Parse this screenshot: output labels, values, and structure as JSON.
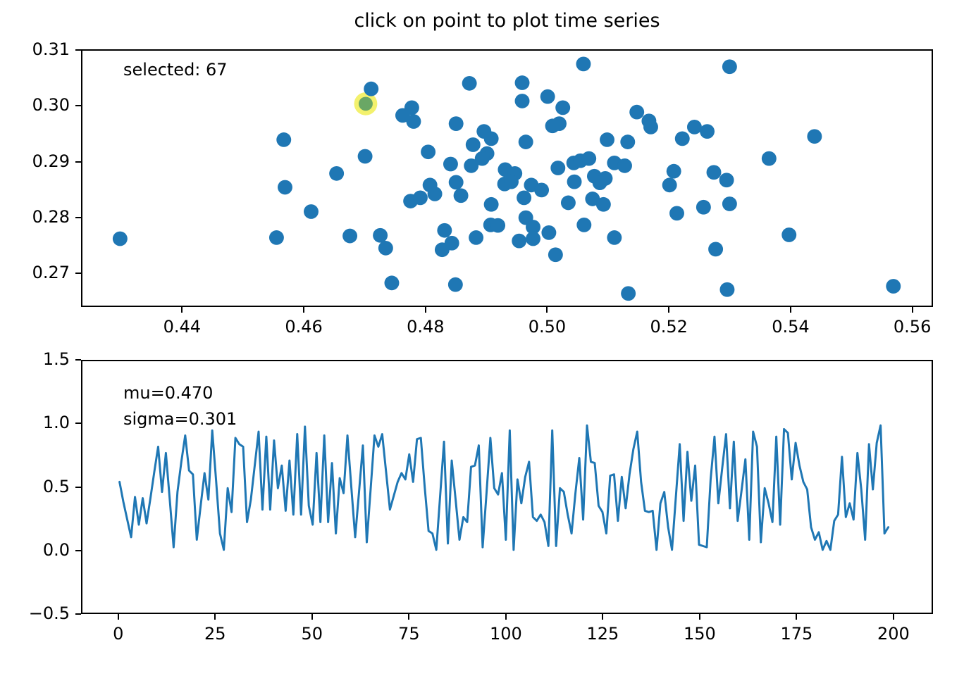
{
  "figure_title": "click on point to plot time series",
  "colors": {
    "marker": "#1f77b4",
    "line": "#1f77b4",
    "selected_fill": "#6aa765",
    "selected_halo": "#f1ee54",
    "axis": "#000000",
    "background": "#ffffff"
  },
  "chart_data": [
    {
      "type": "scatter",
      "title": "click on point to plot time series",
      "annotation": "selected: 67",
      "selected_index_label": "selected: 67",
      "xlim": [
        0.4234,
        0.5634
      ],
      "ylim": [
        0.264,
        0.3101
      ],
      "xticks": [
        0.44,
        0.46,
        0.48,
        0.5,
        0.52,
        0.54,
        0.56
      ],
      "xtick_labels": [
        "0.44",
        "0.46",
        "0.48",
        "0.50",
        "0.52",
        "0.54",
        "0.56"
      ],
      "yticks": [
        0.31,
        0.3,
        0.29,
        0.28,
        0.27
      ],
      "ytick_labels": [
        "0.31",
        "0.30",
        "0.29",
        "0.28",
        "0.27"
      ],
      "grid": false,
      "legend": null,
      "selected_point": {
        "index": 67,
        "x": 0.4701,
        "y": 0.3005
      },
      "points": [
        [
          0.4566,
          0.294
        ],
        [
          0.47,
          0.291
        ],
        [
          0.4653,
          0.2879
        ],
        [
          0.471,
          0.3032
        ],
        [
          0.4777,
          0.2998
        ],
        [
          0.4762,
          0.2984
        ],
        [
          0.478,
          0.2973
        ],
        [
          0.4872,
          0.3042
        ],
        [
          0.485,
          0.2969
        ],
        [
          0.4959,
          0.3043
        ],
        [
          0.4959,
          0.301
        ],
        [
          0.5001,
          0.3018
        ],
        [
          0.5026,
          0.2998
        ],
        [
          0.506,
          0.3077
        ],
        [
          0.5009,
          0.2965
        ],
        [
          0.502,
          0.2969
        ],
        [
          0.4896,
          0.2955
        ],
        [
          0.4908,
          0.2942
        ],
        [
          0.4878,
          0.2931
        ],
        [
          0.4804,
          0.2918
        ],
        [
          0.4901,
          0.2915
        ],
        [
          0.4965,
          0.2936
        ],
        [
          0.4841,
          0.2896
        ],
        [
          0.4875,
          0.2893
        ],
        [
          0.4893,
          0.2906
        ],
        [
          0.4931,
          0.2886
        ],
        [
          0.4947,
          0.2879
        ],
        [
          0.485,
          0.2863
        ],
        [
          0.5018,
          0.2889
        ],
        [
          0.5044,
          0.2898
        ],
        [
          0.5055,
          0.2902
        ],
        [
          0.5069,
          0.2906
        ],
        [
          0.5078,
          0.2874
        ],
        [
          0.5096,
          0.287
        ],
        [
          0.5148,
          0.299
        ],
        [
          0.5168,
          0.2974
        ],
        [
          0.5171,
          0.2963
        ],
        [
          0.5099,
          0.294
        ],
        [
          0.5133,
          0.2936
        ],
        [
          0.5111,
          0.2898
        ],
        [
          0.5128,
          0.2893
        ],
        [
          0.5301,
          0.3072
        ],
        [
          0.5243,
          0.2963
        ],
        [
          0.5264,
          0.2955
        ],
        [
          0.5223,
          0.2942
        ],
        [
          0.5441,
          0.2946
        ],
        [
          0.5366,
          0.2906
        ],
        [
          0.5209,
          0.2883
        ],
        [
          0.5275,
          0.2881
        ],
        [
          0.5296,
          0.2867
        ],
        [
          0.5202,
          0.2858
        ],
        [
          0.4296,
          0.2761
        ],
        [
          0.4568,
          0.2854
        ],
        [
          0.4611,
          0.281
        ],
        [
          0.4554,
          0.2763
        ],
        [
          0.4675,
          0.2766
        ],
        [
          0.4725,
          0.2767
        ],
        [
          0.4734,
          0.2744
        ],
        [
          0.4744,
          0.2681
        ],
        [
          0.4775,
          0.2829
        ],
        [
          0.4791,
          0.2835
        ],
        [
          0.4815,
          0.2842
        ],
        [
          0.4831,
          0.2776
        ],
        [
          0.4827,
          0.2741
        ],
        [
          0.4843,
          0.2753
        ],
        [
          0.4858,
          0.2839
        ],
        [
          0.4849,
          0.2678
        ],
        [
          0.4883,
          0.2763
        ],
        [
          0.4908,
          0.2823
        ],
        [
          0.4907,
          0.2786
        ],
        [
          0.4919,
          0.2785
        ],
        [
          0.493,
          0.286
        ],
        [
          0.4941,
          0.2864
        ],
        [
          0.4962,
          0.2835
        ],
        [
          0.4965,
          0.2799
        ],
        [
          0.4974,
          0.2858
        ],
        [
          0.4977,
          0.2782
        ],
        [
          0.4991,
          0.2849
        ],
        [
          0.4954,
          0.2757
        ],
        [
          0.4977,
          0.2761
        ],
        [
          0.5003,
          0.2772
        ],
        [
          0.5014,
          0.2732
        ],
        [
          0.5035,
          0.2826
        ],
        [
          0.5045,
          0.2864
        ],
        [
          0.5061,
          0.2786
        ],
        [
          0.5075,
          0.2833
        ],
        [
          0.5087,
          0.2862
        ],
        [
          0.5093,
          0.2823
        ],
        [
          0.5111,
          0.2763
        ],
        [
          0.5134,
          0.2662
        ],
        [
          0.5214,
          0.2807
        ],
        [
          0.5258,
          0.2818
        ],
        [
          0.5301,
          0.2824
        ],
        [
          0.5278,
          0.2742
        ],
        [
          0.5399,
          0.2768
        ],
        [
          0.5297,
          0.2669
        ],
        [
          0.5571,
          0.2675
        ],
        [
          0.4807,
          0.2858
        ]
      ]
    },
    {
      "type": "line",
      "annotation_mu": "mu=0.470",
      "annotation_sigma": "sigma=0.301",
      "xlim": [
        -9.6,
        210.2
      ],
      "ylim": [
        -0.5,
        1.5
      ],
      "xticks": [
        0,
        25,
        50,
        75,
        100,
        125,
        150,
        175,
        200
      ],
      "xtick_labels": [
        "0",
        "25",
        "50",
        "75",
        "100",
        "125",
        "150",
        "175",
        "200"
      ],
      "yticks": [
        1.5,
        1.0,
        0.5,
        0.0,
        -0.5
      ],
      "ytick_labels": [
        "1.5",
        "1.0",
        "0.5",
        "0.0",
        "−0.5"
      ],
      "grid": false,
      "legend": null,
      "x_start": 0,
      "x_step": 1,
      "values": [
        0.54,
        0.38,
        0.24,
        0.1,
        0.42,
        0.2,
        0.41,
        0.21,
        0.41,
        0.62,
        0.82,
        0.46,
        0.77,
        0.4,
        0.02,
        0.46,
        0.7,
        0.91,
        0.63,
        0.6,
        0.08,
        0.35,
        0.61,
        0.4,
        0.95,
        0.55,
        0.13,
        0.0,
        0.49,
        0.3,
        0.89,
        0.84,
        0.82,
        0.22,
        0.4,
        0.67,
        0.94,
        0.32,
        0.9,
        0.32,
        0.87,
        0.49,
        0.67,
        0.31,
        0.71,
        0.28,
        0.92,
        0.28,
        0.98,
        0.35,
        0.2,
        0.77,
        0.22,
        0.91,
        0.22,
        0.69,
        0.13,
        0.57,
        0.45,
        0.91,
        0.5,
        0.1,
        0.46,
        0.83,
        0.06,
        0.48,
        0.91,
        0.82,
        0.92,
        0.62,
        0.32,
        0.43,
        0.54,
        0.61,
        0.56,
        0.76,
        0.54,
        0.88,
        0.89,
        0.5,
        0.15,
        0.13,
        0.0,
        0.43,
        0.86,
        0.05,
        0.71,
        0.4,
        0.08,
        0.26,
        0.22,
        0.66,
        0.67,
        0.83,
        0.02,
        0.45,
        0.89,
        0.49,
        0.44,
        0.61,
        0.08,
        0.95,
        0.0,
        0.56,
        0.37,
        0.58,
        0.7,
        0.26,
        0.23,
        0.28,
        0.22,
        0.03,
        0.95,
        0.03,
        0.49,
        0.46,
        0.28,
        0.13,
        0.45,
        0.73,
        0.24,
        0.99,
        0.7,
        0.69,
        0.35,
        0.3,
        0.13,
        0.59,
        0.6,
        0.23,
        0.58,
        0.33,
        0.6,
        0.8,
        0.94,
        0.54,
        0.31,
        0.3,
        0.31,
        0.0,
        0.37,
        0.46,
        0.18,
        0.0,
        0.42,
        0.84,
        0.23,
        0.78,
        0.39,
        0.67,
        0.04,
        0.03,
        0.02,
        0.56,
        0.9,
        0.37,
        0.65,
        0.92,
        0.33,
        0.86,
        0.23,
        0.47,
        0.72,
        0.08,
        0.94,
        0.82,
        0.06,
        0.49,
        0.37,
        0.22,
        0.9,
        0.2,
        0.96,
        0.93,
        0.56,
        0.85,
        0.67,
        0.54,
        0.48,
        0.18,
        0.08,
        0.14,
        0.0,
        0.07,
        0.0,
        0.23,
        0.28,
        0.74,
        0.26,
        0.37,
        0.24,
        0.77,
        0.48,
        0.08,
        0.84,
        0.48,
        0.85,
        0.99,
        0.13,
        0.18
      ]
    }
  ]
}
